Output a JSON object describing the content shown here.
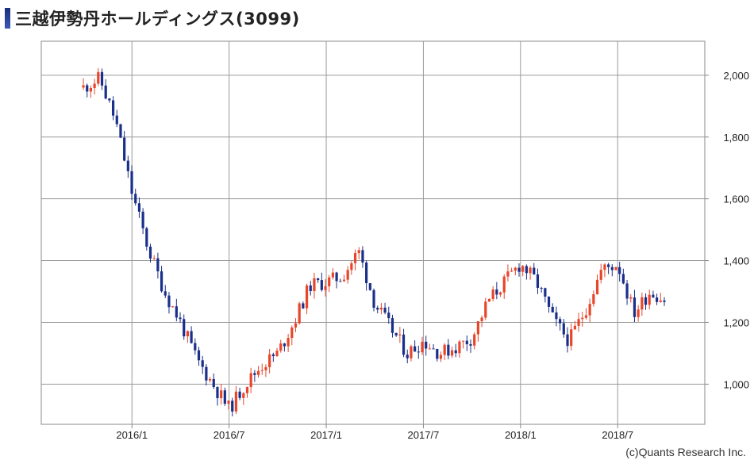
{
  "title": "三越伊勢丹ホールディングス(3099)",
  "credit": "(c)Quants Research Inc.",
  "colors": {
    "up": "#e8462a",
    "down": "#1a2f8a",
    "grid": "#9a9a9a",
    "frame": "#888888",
    "title_bar": "#2a44a0"
  },
  "chart_data": {
    "type": "candlestick",
    "title": "三越伊勢丹ホールディングス(3099)",
    "x_ticks": [
      "2016/1",
      "2016/7",
      "2017/1",
      "2017/7",
      "2018/1",
      "2018/7"
    ],
    "y_ticks": [
      "1,000",
      "1,200",
      "1,400",
      "1,600",
      "1,800",
      "2,000"
    ],
    "ylim": [
      870,
      2110
    ],
    "y_axis_side": "right",
    "grid": true,
    "period_start": "2015/10",
    "period_end": "2018/10",
    "approx_close_path": [
      [
        "2015/10",
        1960
      ],
      [
        "2015/11",
        1990
      ],
      [
        "2015/12",
        1850
      ],
      [
        "2016/1",
        1620
      ],
      [
        "2016/2",
        1440
      ],
      [
        "2016/3",
        1300
      ],
      [
        "2016/4",
        1200
      ],
      [
        "2016/5",
        1080
      ],
      [
        "2016/6",
        1000
      ],
      [
        "2016/7",
        920
      ],
      [
        "2016/8",
        1000
      ],
      [
        "2016/9",
        1060
      ],
      [
        "2016/10",
        1100
      ],
      [
        "2016/11",
        1200
      ],
      [
        "2016/12",
        1320
      ],
      [
        "2017/1",
        1330
      ],
      [
        "2017/2",
        1350
      ],
      [
        "2017/3",
        1430
      ],
      [
        "2017/4",
        1260
      ],
      [
        "2017/5",
        1180
      ],
      [
        "2017/6",
        1100
      ],
      [
        "2017/7",
        1140
      ],
      [
        "2017/8",
        1100
      ],
      [
        "2017/9",
        1120
      ],
      [
        "2017/10",
        1150
      ],
      [
        "2017/11",
        1270
      ],
      [
        "2017/12",
        1330
      ],
      [
        "2018/1",
        1390
      ],
      [
        "2018/2",
        1330
      ],
      [
        "2018/3",
        1210
      ],
      [
        "2018/4",
        1140
      ],
      [
        "2018/5",
        1240
      ],
      [
        "2018/6",
        1370
      ],
      [
        "2018/7",
        1390
      ],
      [
        "2018/8",
        1230
      ],
      [
        "2018/9",
        1300
      ],
      [
        "2018/10",
        1270
      ]
    ]
  }
}
